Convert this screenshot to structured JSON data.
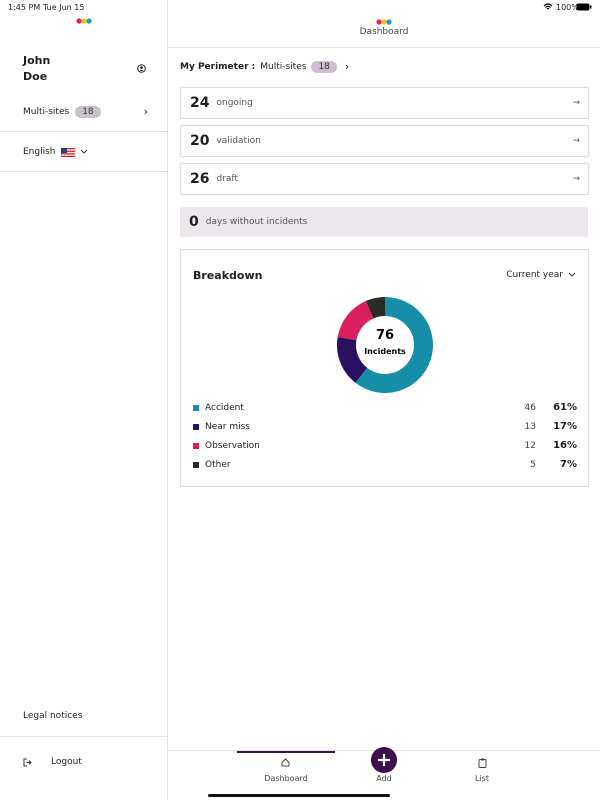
{
  "status_bar": {
    "time": "1:45 PM",
    "date": "Tue Jun 15",
    "battery": "100%"
  },
  "sidebar": {
    "user_name": "John Doe",
    "perimeter": "Multi-sites",
    "perimeter_count": 18,
    "language": "English",
    "legal": "Legal notices",
    "logout": "Logout"
  },
  "header": {
    "title": "Dashboard"
  },
  "perimeter": {
    "label": "My Perimeter :",
    "value": "Multi-sites",
    "count": 18
  },
  "counters": [
    {
      "value": 24,
      "label": "ongoing"
    },
    {
      "value": 20,
      "label": "validation"
    },
    {
      "value": 26,
      "label": "draft"
    }
  ],
  "days": {
    "value": 0,
    "label": "days without incidents"
  },
  "breakdown": {
    "title": "Breakdown",
    "period": "Current year",
    "total": 76,
    "total_label": "Incidents",
    "share_labels": [
      "61%",
      "17%",
      "16%",
      "7%"
    ]
  },
  "chart_data": {
    "type": "pie",
    "categories": [
      "Accident",
      "Near miss",
      "Observation",
      "Other"
    ],
    "values": [
      46,
      13,
      12,
      5
    ],
    "colors": [
      "#168ea8",
      "#2b0f62",
      "#db1f5e",
      "#2a2a26"
    ]
  },
  "tabs": [
    "Dashboard",
    "Add",
    "List"
  ]
}
